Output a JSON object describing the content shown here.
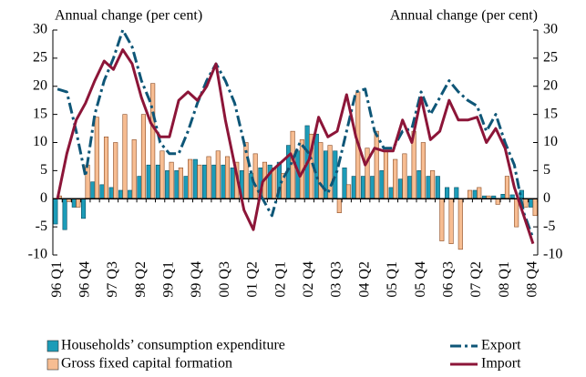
{
  "chart_data": {
    "type": "bar-line",
    "ylabel": "Annual change (per cent)",
    "y2label": "Annual change (per cent)",
    "categories": [
      "96 Q1",
      null,
      null,
      "96 Q4",
      null,
      null,
      "97 Q3",
      null,
      null,
      "98 Q2",
      null,
      null,
      "99 Q1",
      null,
      null,
      "99 Q4",
      null,
      null,
      "00 Q3",
      null,
      null,
      "01 Q2",
      null,
      null,
      "02 Q1",
      null,
      null,
      "02 Q4",
      null,
      null,
      "03 Q3",
      null,
      null,
      "04 Q2",
      null,
      null,
      "05 Q1",
      null,
      null,
      "05 Q4",
      null,
      null,
      "06 Q3",
      null,
      null,
      "07 Q2",
      null,
      null,
      "08 Q1",
      null,
      null,
      "08 Q4"
    ],
    "ylim": [
      -10,
      30
    ],
    "yticks": [
      -10,
      -5,
      0,
      5,
      10,
      15,
      20,
      25,
      30
    ],
    "y2lim": [
      -10,
      30
    ],
    "y2ticks": [
      -10,
      -5,
      0,
      5,
      10,
      15,
      20,
      25,
      30
    ],
    "legend": "bottom",
    "series": [
      {
        "name": "Households’ consumption expenditure",
        "type": "bar",
        "color": "#1c9cb8",
        "values": [
          -4.5,
          -5.5,
          -1.5,
          -3.5,
          3,
          2.5,
          2,
          1.5,
          1.5,
          4,
          6,
          6,
          5,
          5,
          4,
          7,
          6,
          6,
          6,
          5.5,
          5,
          4.5,
          5.5,
          6,
          6.5,
          9.5,
          8.5,
          13,
          11.5,
          8.5,
          8.5,
          5.5,
          4,
          4,
          4,
          5,
          2,
          3.5,
          4,
          5,
          4,
          4,
          2,
          2,
          0,
          1.5,
          0.5,
          0.5,
          0.8,
          0.7,
          1.5,
          -1.5
        ]
      },
      {
        "name": "Gross fixed capital formation",
        "type": "bar",
        "color": "#f7bd92",
        "values": [
          0.5,
          -0.5,
          -1.5,
          6,
          14.5,
          11,
          10,
          15,
          10.5,
          15,
          20.5,
          8.5,
          6.5,
          5.5,
          7,
          6,
          7.5,
          8.5,
          7.5,
          6.5,
          10,
          8,
          6.5,
          5.5,
          4.5,
          12,
          10.5,
          11.5,
          10,
          9.5,
          -2.5,
          2.5,
          19,
          9,
          12,
          8.5,
          7,
          8,
          12,
          10,
          5,
          -7.5,
          -8,
          -9,
          1.5,
          2,
          0.5,
          -1,
          4,
          -5,
          -1.5,
          -3
        ]
      },
      {
        "name": "Export",
        "type": "line",
        "dash": "dashdot",
        "color": "#0e5677",
        "values": [
          19.5,
          19,
          12,
          4,
          15,
          21,
          25,
          30,
          27,
          21,
          17,
          10,
          8,
          8,
          12,
          17,
          21,
          24,
          21,
          17,
          10,
          3,
          0,
          -3,
          3,
          6,
          10,
          8,
          3,
          1,
          5,
          12,
          19,
          19.5,
          12,
          9,
          9,
          12,
          12.5,
          19,
          15,
          18,
          21,
          19,
          17.5,
          16.5,
          12,
          15,
          10,
          6,
          -2.5,
          -7
        ]
      },
      {
        "name": "Import",
        "type": "line",
        "color": "#8c1538",
        "values": [
          0,
          8,
          14,
          17,
          21,
          24.5,
          23,
          26.5,
          24,
          18,
          13.5,
          11,
          11,
          17.5,
          19,
          17.5,
          20,
          24,
          14,
          6,
          -2,
          -5.5,
          3,
          5,
          6.5,
          8,
          4,
          7,
          14.5,
          11,
          12,
          18.5,
          11,
          6,
          9,
          8.5,
          8.5,
          14,
          10,
          18,
          10.5,
          12,
          17.5,
          14,
          14,
          14.5,
          10,
          12.5,
          9,
          2,
          -3,
          -8
        ]
      }
    ]
  }
}
